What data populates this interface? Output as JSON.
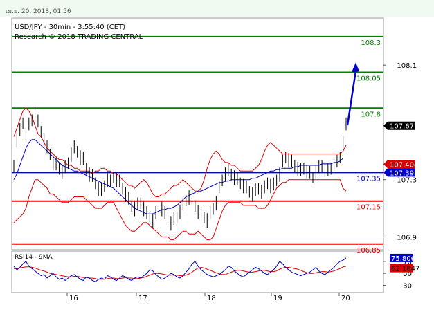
{
  "header": {
    "timestamp": "เม.ย. 20, 2018, 01:56"
  },
  "chart_data": {
    "type": "line",
    "title": "USD/JPY - 30min - 3:55:40 (CET)",
    "subtitle": "Research © 2018 TRADING CENTRAL",
    "x_tick_labels": [
      "16",
      "17",
      "18",
      "19",
      "20"
    ],
    "y_tick_labels": [
      "108.1",
      "107.3",
      "106.9"
    ],
    "ylim": [
      106.82,
      108.42
    ],
    "levels": [
      {
        "value": 108.3,
        "label": "108.3",
        "color": "#008000"
      },
      {
        "value": 108.05,
        "label": "108.05",
        "color": "#008000"
      },
      {
        "value": 107.8,
        "label": "107.8",
        "color": "#008000"
      },
      {
        "value": 107.35,
        "label": "107.35",
        "color": "#0000cc"
      },
      {
        "value": 107.15,
        "label": "107.15",
        "color": "#dd0000"
      },
      {
        "value": 106.85,
        "label": "106.85",
        "color": "#dd0000"
      }
    ],
    "price_tags": [
      {
        "value": 107.677,
        "label": "107.677",
        "bg": "#000000",
        "color": "#ffffff"
      },
      {
        "value": 107.408,
        "label": "107.408",
        "bg": "#dd0000",
        "color": "#ffffff"
      },
      {
        "value": 107.398,
        "label": "107.398",
        "bg": "#0000cc",
        "color": "#ffffff"
      }
    ],
    "price_series": [
      107.4,
      107.58,
      107.64,
      107.7,
      107.62,
      107.68,
      107.72,
      107.76,
      107.7,
      107.64,
      107.58,
      107.52,
      107.48,
      107.42,
      107.4,
      107.38,
      107.36,
      107.38,
      107.42,
      107.48,
      107.52,
      107.5,
      107.46,
      107.44,
      107.38,
      107.34,
      107.32,
      107.28,
      107.24,
      107.22,
      107.26,
      107.3,
      107.28,
      107.32,
      107.3,
      107.28,
      107.24,
      107.2,
      107.16,
      107.12,
      107.1,
      107.12,
      107.14,
      107.1,
      107.06,
      107.04,
      107.02,
      107.06,
      107.08,
      107.1,
      107.06,
      107.02,
      107.0,
      107.02,
      107.04,
      107.08,
      107.12,
      107.16,
      107.18,
      107.16,
      107.12,
      107.08,
      107.06,
      107.04,
      107.02,
      107.06,
      107.1,
      107.14,
      107.24,
      107.3,
      107.34,
      107.36,
      107.34,
      107.32,
      107.3,
      107.28,
      107.26,
      107.24,
      107.22,
      107.2,
      107.22,
      107.24,
      107.22,
      107.24,
      107.28,
      107.26,
      107.26,
      107.3,
      107.34,
      107.42,
      107.46,
      107.44,
      107.42,
      107.4,
      107.38,
      107.36,
      107.38,
      107.36,
      107.34,
      107.32,
      107.36,
      107.38,
      107.4,
      107.38,
      107.36,
      107.38,
      107.4,
      107.42,
      107.46,
      107.56,
      107.68
    ],
    "ma_series": [
      107.3,
      107.34,
      107.4,
      107.46,
      107.52,
      107.56,
      107.58,
      107.58,
      107.56,
      107.54,
      107.52,
      107.5,
      107.48,
      107.46,
      107.44,
      107.42,
      107.4,
      107.39,
      107.38,
      107.37,
      107.36,
      107.36,
      107.35,
      107.34,
      107.33,
      107.32,
      107.31,
      107.3,
      107.29,
      107.28,
      107.27,
      107.26,
      107.25,
      107.24,
      107.22,
      107.2,
      107.18,
      107.16,
      107.14,
      107.12,
      107.1,
      107.09,
      107.08,
      107.07,
      107.06,
      107.06,
      107.06,
      107.07,
      107.08,
      107.09,
      107.09,
      107.1,
      107.1,
      107.11,
      107.12,
      107.14,
      107.16,
      107.18,
      107.19,
      107.2,
      107.21,
      107.22,
      107.22,
      107.23,
      107.24,
      107.25,
      107.26,
      107.27,
      107.28,
      107.28,
      107.29,
      107.29,
      107.3,
      107.3,
      107.3,
      107.3,
      107.3,
      107.3,
      107.3,
      107.31,
      107.31,
      107.32,
      107.33,
      107.34,
      107.35,
      107.36,
      107.36,
      107.37,
      107.37,
      107.38,
      107.38,
      107.38,
      107.38,
      107.39,
      107.39,
      107.4,
      107.4,
      107.4,
      107.4,
      107.4,
      107.4,
      107.4,
      107.41,
      107.41,
      107.41,
      107.41,
      107.42,
      107.42,
      107.43,
      107.45
    ],
    "band_upper": [
      107.6,
      107.66,
      107.72,
      107.78,
      107.8,
      107.78,
      107.74,
      107.68,
      107.62,
      107.6,
      107.56,
      107.52,
      107.5,
      107.48,
      107.46,
      107.44,
      107.44,
      107.42,
      107.4,
      107.4,
      107.38,
      107.38,
      107.36,
      107.36,
      107.36,
      107.36,
      107.34,
      107.36,
      107.36,
      107.38,
      107.38,
      107.36,
      107.36,
      107.34,
      107.34,
      107.32,
      107.3,
      107.28,
      107.26,
      107.26,
      107.24,
      107.26,
      107.28,
      107.3,
      107.28,
      107.24,
      107.2,
      107.18,
      107.18,
      107.2,
      107.2,
      107.22,
      107.24,
      107.26,
      107.26,
      107.28,
      107.3,
      107.28,
      107.26,
      107.24,
      107.22,
      107.22,
      107.24,
      107.3,
      107.38,
      107.44,
      107.48,
      107.5,
      107.48,
      107.44,
      107.42,
      107.42,
      107.4,
      107.4,
      107.38,
      107.36,
      107.36,
      107.36,
      107.36,
      107.36,
      107.38,
      107.4,
      107.44,
      107.5,
      107.54,
      107.56,
      107.54,
      107.52,
      107.5,
      107.48,
      107.48,
      107.48,
      107.48,
      107.48,
      107.48,
      107.48,
      107.48,
      107.48,
      107.48,
      107.48,
      107.48,
      107.48,
      107.48,
      107.48,
      107.48,
      107.48,
      107.48,
      107.48,
      107.48,
      107.5,
      107.54
    ],
    "band_lower": [
      107.0,
      107.02,
      107.04,
      107.06,
      107.1,
      107.18,
      107.24,
      107.3,
      107.3,
      107.28,
      107.26,
      107.24,
      107.2,
      107.2,
      107.18,
      107.16,
      107.14,
      107.14,
      107.14,
      107.16,
      107.18,
      107.18,
      107.18,
      107.18,
      107.16,
      107.14,
      107.12,
      107.1,
      107.1,
      107.1,
      107.12,
      107.14,
      107.14,
      107.14,
      107.1,
      107.06,
      107.02,
      106.98,
      106.96,
      106.94,
      106.94,
      106.96,
      106.98,
      107.0,
      107.0,
      106.98,
      106.96,
      106.94,
      106.92,
      106.9,
      106.9,
      106.9,
      106.88,
      106.88,
      106.9,
      106.92,
      106.94,
      106.94,
      106.92,
      106.92,
      106.92,
      106.94,
      106.92,
      106.9,
      106.88,
      106.88,
      106.9,
      106.96,
      107.02,
      107.08,
      107.12,
      107.14,
      107.14,
      107.14,
      107.14,
      107.14,
      107.12,
      107.12,
      107.12,
      107.12,
      107.12,
      107.1,
      107.1,
      107.1,
      107.12,
      107.16,
      107.2,
      107.24,
      107.26,
      107.28,
      107.28,
      107.3,
      107.3,
      107.3,
      107.3,
      107.3,
      107.3,
      107.3,
      107.3,
      107.3,
      107.3,
      107.3,
      107.3,
      107.3,
      107.3,
      107.3,
      107.3,
      107.3,
      107.3,
      107.24,
      107.22
    ],
    "forecast": [
      107.68,
      108.1
    ],
    "rsi": {
      "label": "RSI14 - 9MA",
      "y_tick_labels": [
        "70",
        "50",
        "30"
      ],
      "value_labels": [
        "75.8061",
        "62.1847"
      ],
      "ylim": [
        20,
        85
      ],
      "rsi_series": [
        62,
        56,
        60,
        66,
        70,
        62,
        58,
        54,
        50,
        46,
        48,
        42,
        46,
        50,
        44,
        40,
        42,
        38,
        42,
        46,
        48,
        44,
        40,
        38,
        44,
        42,
        38,
        36,
        40,
        42,
        40,
        46,
        44,
        40,
        38,
        42,
        46,
        44,
        40,
        38,
        42,
        44,
        42,
        46,
        50,
        56,
        54,
        48,
        44,
        40,
        42,
        46,
        50,
        48,
        44,
        42,
        46,
        52,
        58,
        66,
        70,
        62,
        56,
        52,
        48,
        46,
        44,
        46,
        48,
        52,
        56,
        62,
        60,
        54,
        50,
        46,
        44,
        48,
        52,
        56,
        60,
        58,
        54,
        50,
        48,
        52,
        56,
        62,
        70,
        66,
        60,
        56,
        52,
        50,
        48,
        46,
        48,
        50,
        52,
        56,
        60,
        54,
        50,
        48,
        52,
        56,
        60,
        66,
        70,
        72,
        76
      ],
      "ma_series": [
        58,
        58,
        59,
        60,
        61,
        61,
        60,
        59,
        57,
        55,
        54,
        52,
        50,
        49,
        48,
        47,
        46,
        45,
        44,
        44,
        45,
        45,
        44,
        43,
        43,
        42,
        42,
        41,
        40,
        40,
        40,
        41,
        42,
        42,
        41,
        41,
        42,
        43,
        42,
        42,
        41,
        41,
        42,
        43,
        45,
        47,
        49,
        50,
        50,
        49,
        48,
        47,
        47,
        47,
        47,
        46,
        46,
        47,
        49,
        52,
        56,
        59,
        60,
        59,
        57,
        55,
        53,
        51,
        49,
        48,
        48,
        50,
        52,
        54,
        55,
        55,
        54,
        53,
        52,
        52,
        53,
        54,
        55,
        55,
        54,
        53,
        53,
        54,
        57,
        59,
        60,
        60,
        59,
        58,
        57,
        55,
        53,
        51,
        50,
        50,
        51,
        52,
        53,
        53,
        52,
        53,
        54,
        56,
        58,
        61,
        62
      ]
    }
  }
}
